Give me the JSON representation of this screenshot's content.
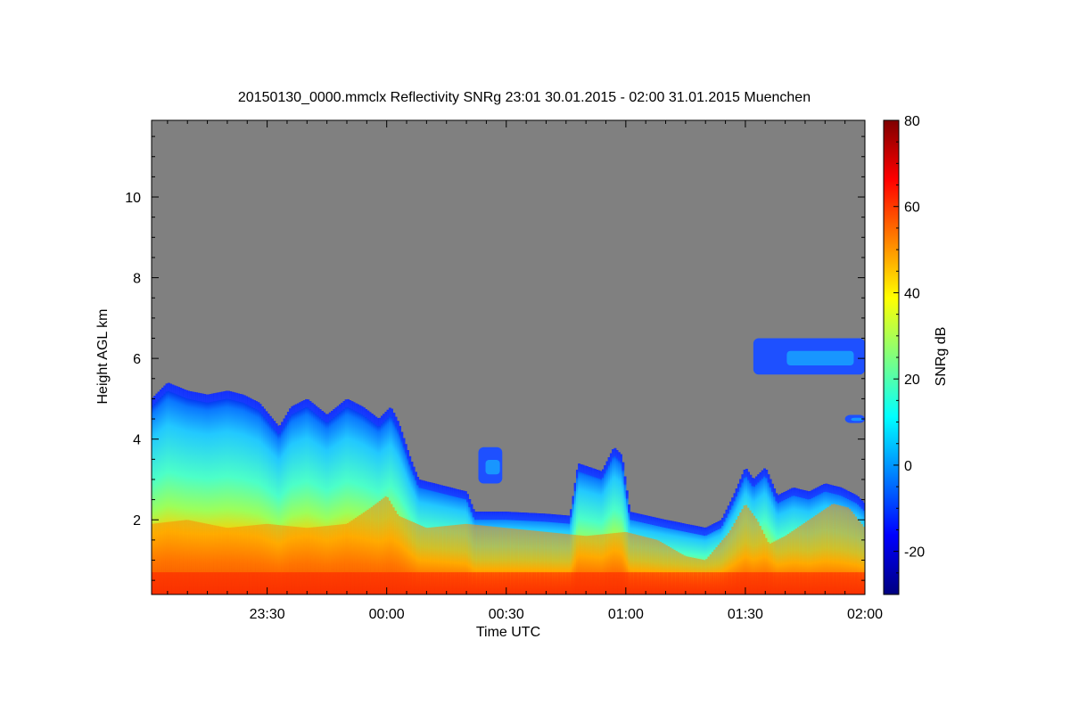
{
  "chart_data": {
    "type": "heatmap",
    "title": "20150130_0000.mmclx Reflectivity SNRg   23:01 30.01.2015 - 02:00 31.01.2015 Muenchen",
    "xlabel": "Time UTC",
    "ylabel": "Height AGL km",
    "x_ticks": [
      {
        "min": 30,
        "label": "23:30"
      },
      {
        "min": 60,
        "label": "00:00"
      },
      {
        "min": 90,
        "label": "00:30"
      },
      {
        "min": 120,
        "label": "01:00"
      },
      {
        "min": 150,
        "label": "01:30"
      },
      {
        "min": 180,
        "label": "02:00"
      }
    ],
    "xlim_minutes_after_2300": [
      1,
      180
    ],
    "y_ticks": [
      2,
      4,
      6,
      8,
      10
    ],
    "ylim": [
      0.15,
      11.9
    ],
    "background_color": "#808080",
    "colorbar": {
      "label": "SNRg dB",
      "range": [
        -30,
        80
      ],
      "ticks": [
        -20,
        0,
        20,
        40,
        60,
        80
      ],
      "colormap": [
        "#00007f",
        "#0000ff",
        "#007fff",
        "#00ffff",
        "#7fff7f",
        "#ffff00",
        "#ff7f00",
        "#ff0000",
        "#7f0000"
      ]
    },
    "cloud_top_km": [
      [
        1,
        5.0
      ],
      [
        5,
        5.4
      ],
      [
        10,
        5.2
      ],
      [
        15,
        5.1
      ],
      [
        20,
        5.2
      ],
      [
        24,
        5.1
      ],
      [
        28,
        4.9
      ],
      [
        33,
        4.3
      ],
      [
        36,
        4.8
      ],
      [
        40,
        5.0
      ],
      [
        45,
        4.6
      ],
      [
        50,
        5.0
      ],
      [
        54,
        4.8
      ],
      [
        58,
        4.5
      ],
      [
        61,
        4.8
      ],
      [
        63,
        4.4
      ],
      [
        66,
        3.5
      ],
      [
        68,
        3.0
      ],
      [
        72,
        2.9
      ],
      [
        76,
        2.8
      ],
      [
        80,
        2.7
      ],
      [
        82,
        2.2
      ],
      [
        90,
        2.2
      ],
      [
        100,
        2.15
      ],
      [
        106,
        2.1
      ],
      [
        108,
        3.4
      ],
      [
        114,
        3.2
      ],
      [
        117,
        3.8
      ],
      [
        119,
        3.6
      ],
      [
        121,
        2.2
      ],
      [
        130,
        2.0
      ],
      [
        135,
        1.9
      ],
      [
        140,
        1.8
      ],
      [
        144,
        2.0
      ],
      [
        147,
        2.6
      ],
      [
        150,
        3.3
      ],
      [
        152,
        3.0
      ],
      [
        155,
        3.3
      ],
      [
        158,
        2.6
      ],
      [
        162,
        2.8
      ],
      [
        166,
        2.7
      ],
      [
        170,
        2.9
      ],
      [
        174,
        2.8
      ],
      [
        178,
        2.6
      ],
      [
        180,
        2.4
      ]
    ],
    "warm_layer_top_km": [
      [
        1,
        1.9
      ],
      [
        10,
        2.0
      ],
      [
        20,
        1.8
      ],
      [
        30,
        1.9
      ],
      [
        40,
        1.8
      ],
      [
        50,
        1.9
      ],
      [
        56,
        2.3
      ],
      [
        60,
        2.6
      ],
      [
        63,
        2.1
      ],
      [
        70,
        1.8
      ],
      [
        80,
        1.9
      ],
      [
        90,
        1.8
      ],
      [
        100,
        1.7
      ],
      [
        110,
        1.6
      ],
      [
        120,
        1.7
      ],
      [
        128,
        1.5
      ],
      [
        135,
        1.1
      ],
      [
        140,
        1.0
      ],
      [
        146,
        1.7
      ],
      [
        150,
        2.4
      ],
      [
        153,
        2.0
      ],
      [
        156,
        1.4
      ],
      [
        160,
        1.6
      ],
      [
        166,
        2.0
      ],
      [
        172,
        2.4
      ],
      [
        176,
        2.3
      ],
      [
        180,
        1.8
      ]
    ],
    "echo_regions": [
      {
        "name": "upper-cloud-layer",
        "x_start": 152,
        "x_end": 180,
        "base_km": 5.6,
        "top_km": 6.5
      },
      {
        "name": "small-echo-0035",
        "x_start": 83,
        "x_end": 89,
        "base_km": 2.9,
        "top_km": 3.8
      },
      {
        "name": "thin-echo-right",
        "x_start": 175,
        "x_end": 180,
        "base_km": 4.4,
        "top_km": 4.6
      }
    ]
  }
}
